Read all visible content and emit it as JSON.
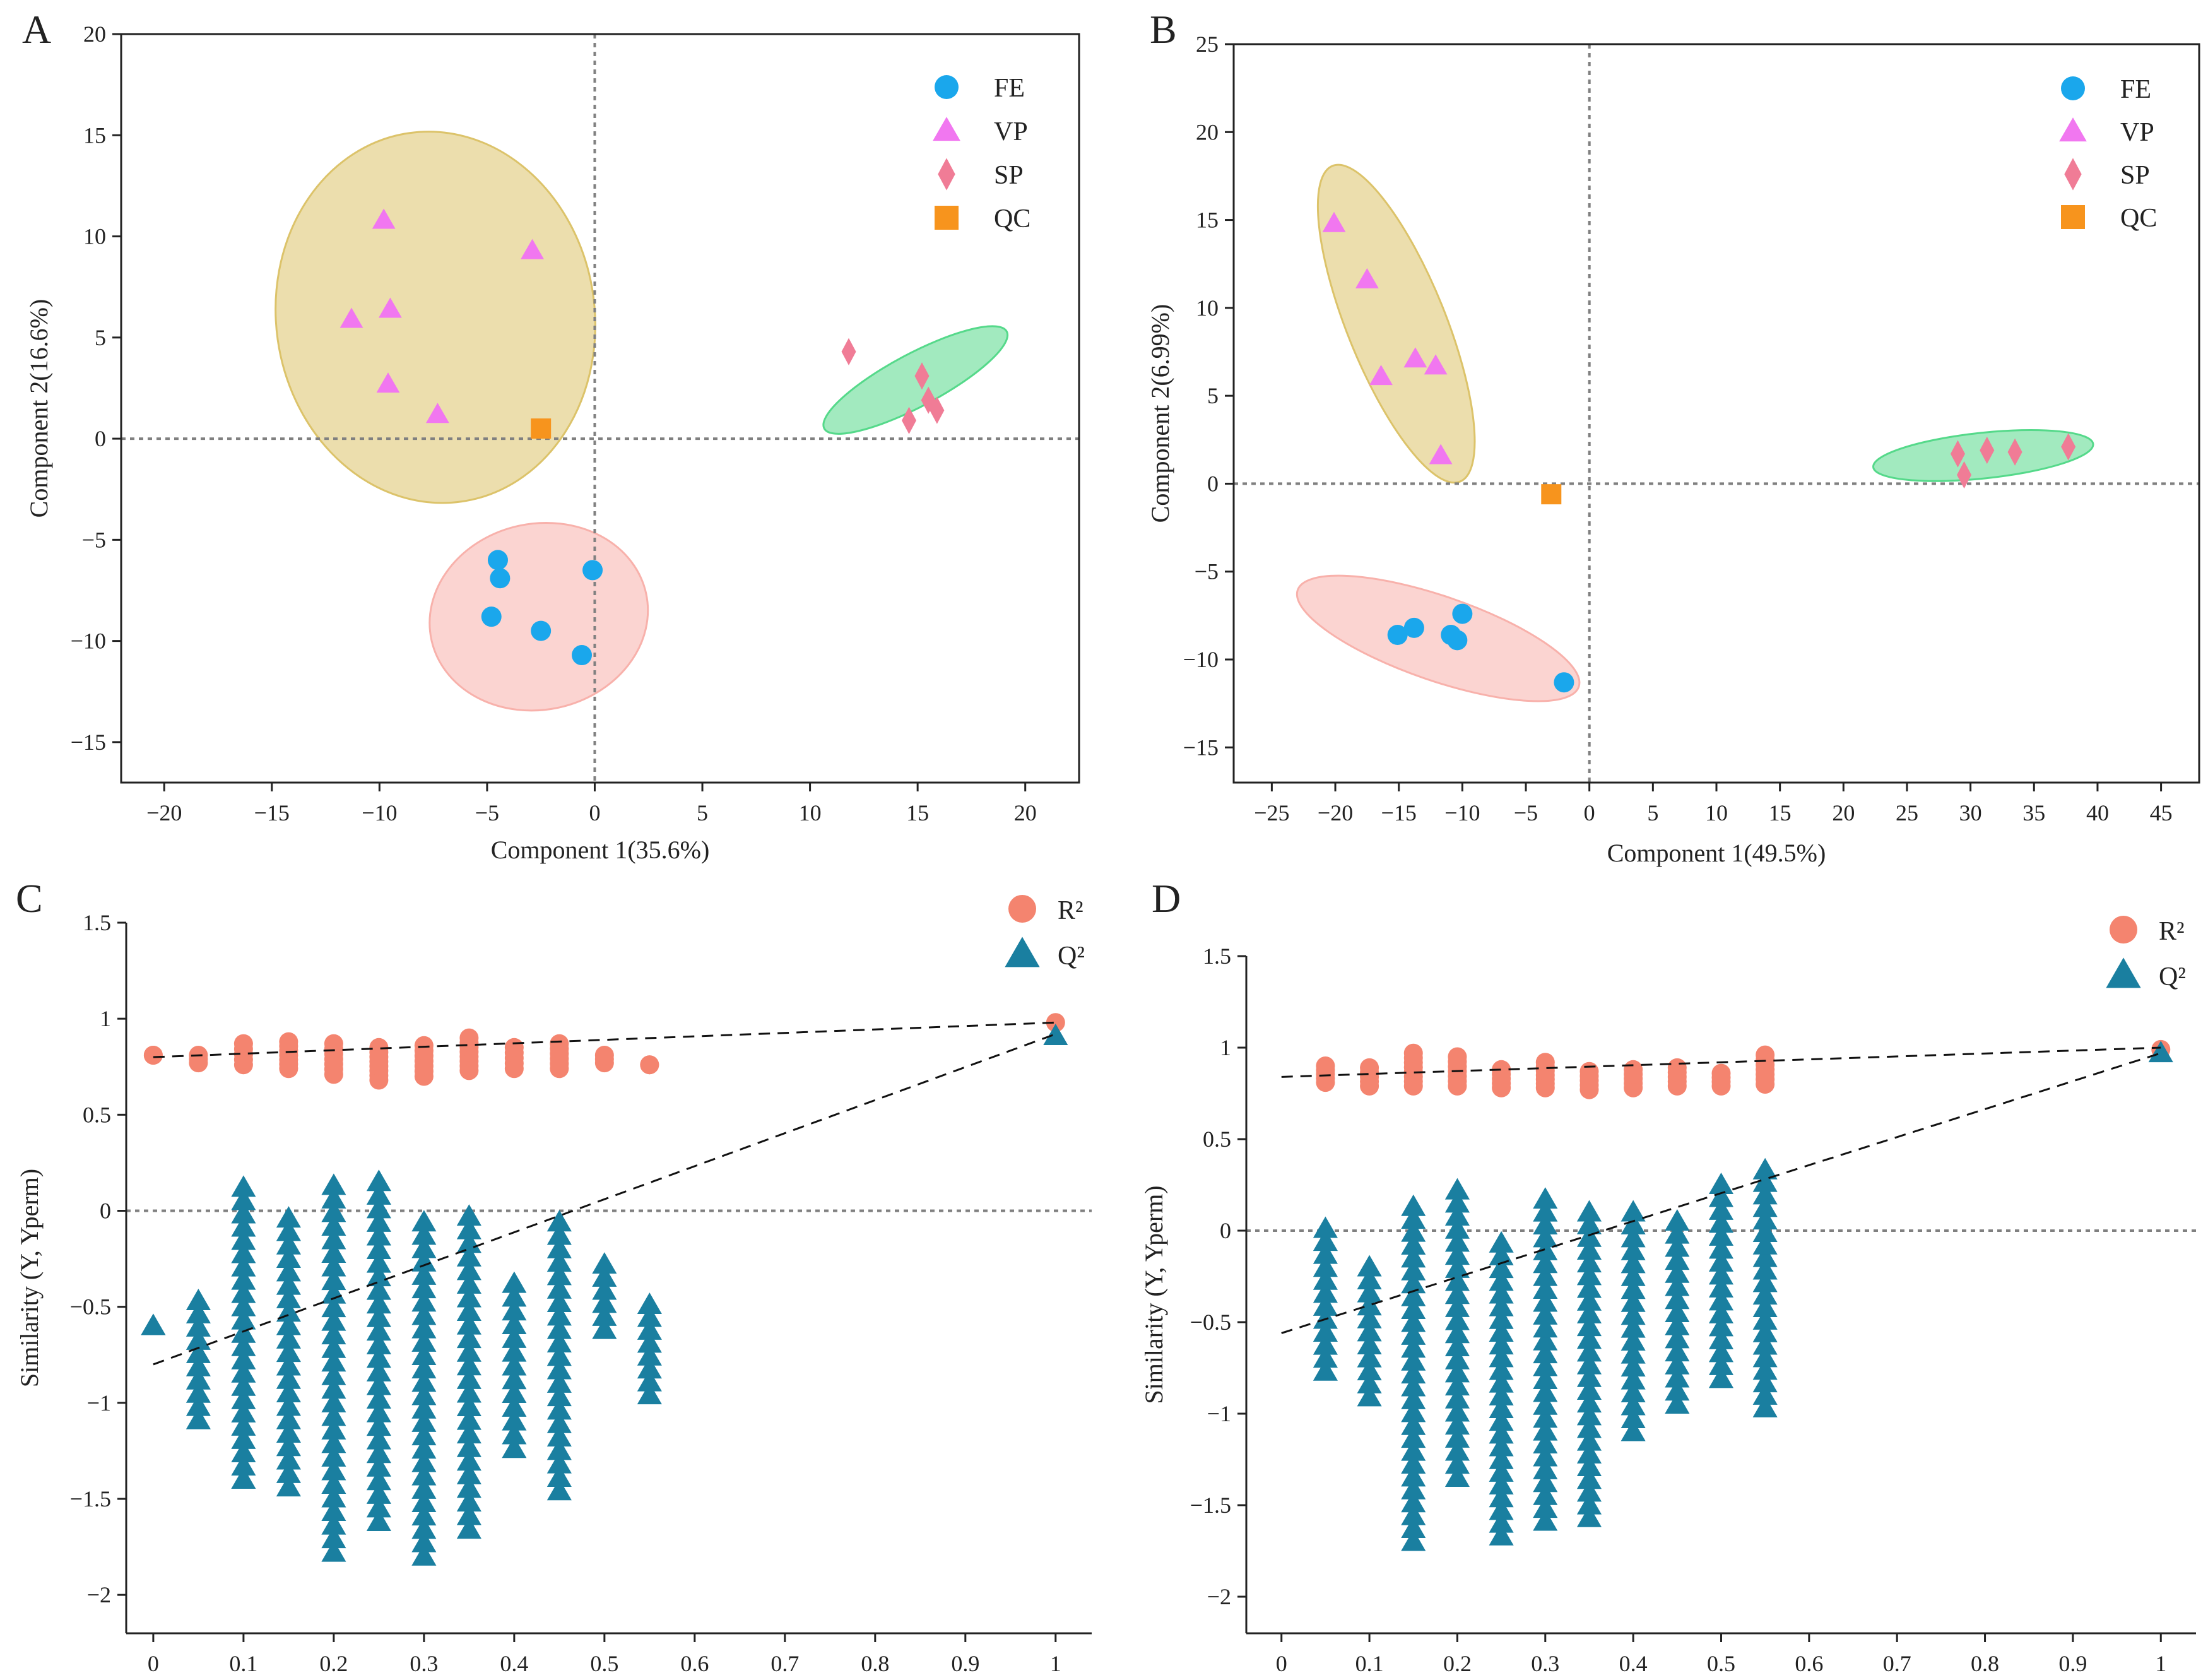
{
  "figure": {
    "panels": [
      "A",
      "B",
      "C",
      "D"
    ]
  },
  "colors": {
    "FE": "#1aa7ec",
    "VP": "#f177f0",
    "SP": "#f07c96",
    "QC": "#f7941d",
    "R2": "#f4846f",
    "Q2": "#1a7fa0",
    "ellipse_VP": "#dcc36a",
    "ellipse_SP": "#55d98a",
    "ellipse_FE": "#f8b1ab",
    "axis": "#222222",
    "refline": "#808080"
  },
  "chart_data": [
    {
      "panel": "A",
      "type": "scatter",
      "xlabel": "Component 1(35.6%)",
      "ylabel": "Component 2(16.6%)",
      "xlim": [
        -22,
        22.5
      ],
      "ylim": [
        -17,
        20
      ],
      "xticks": [
        -20,
        -15,
        -10,
        -5,
        0,
        5,
        10,
        15,
        20
      ],
      "yticks": [
        -15,
        -10,
        -5,
        0,
        5,
        10,
        15,
        20
      ],
      "xtick_labels": [
        "−20",
        "−15",
        "−10",
        "−5",
        "0",
        "5",
        "10",
        "15",
        "20"
      ],
      "ytick_labels": [
        "−15",
        "−10",
        "−5",
        "0",
        "5",
        "10",
        "15",
        "20"
      ],
      "legend": [
        "FE",
        "VP",
        "SP",
        "QC"
      ],
      "series": [
        {
          "name": "FE",
          "marker": "circle",
          "points": [
            [
              -4.5,
              -6.0
            ],
            [
              -4.4,
              -6.9
            ],
            [
              -0.1,
              -6.5
            ],
            [
              -4.8,
              -8.8
            ],
            [
              -2.5,
              -9.5
            ],
            [
              -0.6,
              -10.7
            ]
          ]
        },
        {
          "name": "VP",
          "marker": "triangle",
          "points": [
            [
              -9.8,
              10.8
            ],
            [
              -2.9,
              9.3
            ],
            [
              -9.5,
              6.4
            ],
            [
              -11.3,
              5.9
            ],
            [
              -9.6,
              2.7
            ],
            [
              -7.3,
              1.2
            ]
          ]
        },
        {
          "name": "SP",
          "marker": "diamond",
          "points": [
            [
              11.8,
              4.3
            ],
            [
              15.2,
              3.1
            ],
            [
              15.5,
              1.9
            ],
            [
              15.9,
              1.4
            ],
            [
              14.6,
              0.9
            ]
          ]
        },
        {
          "name": "QC",
          "marker": "square",
          "points": [
            [
              -2.5,
              0.5
            ]
          ]
        }
      ],
      "ellipses": [
        {
          "group": "VP",
          "cx": -7.4,
          "cy": 6.0,
          "rx": 7.4,
          "ry": 9.2,
          "angle": -8
        },
        {
          "group": "SP",
          "cx": 14.9,
          "cy": 2.9,
          "rx": 4.8,
          "ry": 1.3,
          "angle": -28
        },
        {
          "group": "FE",
          "cx": -2.6,
          "cy": -8.8,
          "rx": 5.1,
          "ry": 4.6,
          "angle": -12
        }
      ]
    },
    {
      "panel": "B",
      "type": "scatter",
      "xlabel": "Component 1(49.5%)",
      "ylabel": "Component 2(6.99%)",
      "xlim": [
        -28,
        48
      ],
      "ylim": [
        -17,
        25
      ],
      "xticks": [
        -25,
        -20,
        -15,
        -10,
        -5,
        0,
        5,
        10,
        15,
        20,
        25,
        30,
        35,
        40,
        45
      ],
      "yticks": [
        -15,
        -10,
        -5,
        0,
        5,
        10,
        15,
        20,
        25
      ],
      "xtick_labels": [
        "−25",
        "−20",
        "−15",
        "−10",
        "−5",
        "0",
        "5",
        "10",
        "15",
        "20",
        "25",
        "30",
        "35",
        "40",
        "45"
      ],
      "ytick_labels": [
        "−15",
        "−10",
        "−5",
        "0",
        "5",
        "10",
        "15",
        "20",
        "25"
      ],
      "legend": [
        "FE",
        "VP",
        "SP",
        "QC"
      ],
      "series": [
        {
          "name": "FE",
          "marker": "circle",
          "points": [
            [
              -10.0,
              -7.4
            ],
            [
              -13.8,
              -8.2
            ],
            [
              -15.1,
              -8.6
            ],
            [
              -10.9,
              -8.6
            ],
            [
              -10.4,
              -8.9
            ],
            [
              -2.0,
              -11.3
            ]
          ]
        },
        {
          "name": "VP",
          "marker": "triangle",
          "points": [
            [
              -20.1,
              14.8
            ],
            [
              -17.5,
              11.6
            ],
            [
              -13.7,
              7.1
            ],
            [
              -12.1,
              6.7
            ],
            [
              -16.4,
              6.1
            ],
            [
              -11.7,
              1.6
            ]
          ]
        },
        {
          "name": "SP",
          "marker": "diamond",
          "points": [
            [
              29.0,
              1.7
            ],
            [
              31.3,
              1.9
            ],
            [
              33.5,
              1.8
            ],
            [
              37.7,
              2.1
            ],
            [
              29.5,
              0.5
            ]
          ]
        },
        {
          "name": "QC",
          "marker": "square",
          "points": [
            [
              -3.0,
              -0.6
            ]
          ]
        }
      ],
      "ellipses": [
        {
          "group": "VP",
          "cx": -15.2,
          "cy": 9.1,
          "rx": 13.4,
          "ry": 2.8,
          "angle": 68
        },
        {
          "group": "SP",
          "cx": 31.0,
          "cy": 1.6,
          "rx": 8.7,
          "ry": 1.3,
          "angle": -6
        },
        {
          "group": "FE",
          "cx": -11.9,
          "cy": -8.8,
          "rx": 11.7,
          "ry": 2.4,
          "angle": 19
        }
      ]
    },
    {
      "panel": "C",
      "type": "scatter",
      "xlabel": "",
      "ylabel": "Similarity (Y, Yperm)",
      "xlim": [
        -0.03,
        1.04
      ],
      "ylim": [
        -2.2,
        1.5
      ],
      "xticks": [
        0,
        0.1,
        0.2,
        0.3,
        0.4,
        0.5,
        0.6,
        0.7,
        0.8,
        0.9,
        1
      ],
      "yticks": [
        -2,
        -1.5,
        -1,
        -0.5,
        0,
        0.5,
        1,
        1.5
      ],
      "xtick_labels": [
        "0",
        "0.1",
        "0.2",
        "0.3",
        "0.4",
        "0.5",
        "0.6",
        "0.7",
        "0.8",
        "0.9",
        "1"
      ],
      "ytick_labels": [
        "−2",
        "−1.5",
        "−1",
        "−0.5",
        "0",
        "0.5",
        "1",
        "1.5"
      ],
      "legend": [
        "R²",
        "Q²"
      ],
      "r2": {
        "x": [
          0,
          0.05,
          0.1,
          0.15,
          0.2,
          0.25,
          0.3,
          0.35,
          0.4,
          0.45,
          0.5,
          0.55
        ],
        "min": [
          0.81,
          0.77,
          0.76,
          0.74,
          0.71,
          0.68,
          0.7,
          0.73,
          0.74,
          0.74,
          0.77,
          0.76
        ],
        "max": [
          0.81,
          0.81,
          0.87,
          0.88,
          0.87,
          0.85,
          0.86,
          0.9,
          0.85,
          0.87,
          0.81,
          0.76
        ],
        "final": [
          1,
          0.98
        ]
      },
      "q2": {
        "x": [
          0,
          0.05,
          0.1,
          0.15,
          0.2,
          0.25,
          0.3,
          0.35,
          0.4,
          0.45,
          0.5,
          0.55
        ],
        "min": [
          -0.6,
          -1.09,
          -1.4,
          -1.44,
          -1.78,
          -1.62,
          -1.8,
          -1.66,
          -1.24,
          -1.46,
          -0.62,
          -0.96
        ],
        "max": [
          -0.6,
          -0.47,
          0.12,
          -0.04,
          0.13,
          0.15,
          -0.06,
          -0.03,
          -0.38,
          -0.06,
          -0.28,
          -0.49
        ],
        "final": [
          1,
          0.91
        ]
      },
      "fit_r2": {
        "from": [
          0,
          0.8
        ],
        "to": [
          1,
          0.98
        ]
      },
      "fit_q2": {
        "from": [
          0,
          -0.8
        ],
        "to": [
          1,
          0.92
        ]
      }
    },
    {
      "panel": "D",
      "type": "scatter",
      "xlabel": "",
      "ylabel": "Similarity (Y, Yperm)",
      "xlim": [
        -0.04,
        1.04
      ],
      "ylim": [
        -2.2,
        1.5
      ],
      "xticks": [
        0,
        0.1,
        0.2,
        0.3,
        0.4,
        0.5,
        0.6,
        0.7,
        0.8,
        0.9,
        1
      ],
      "yticks": [
        -2,
        -1.5,
        -1,
        -0.5,
        0,
        0.5,
        1,
        1.5
      ],
      "xtick_labels": [
        "0",
        "0.1",
        "0.2",
        "0.3",
        "0.4",
        "0.5",
        "0.6",
        "0.7",
        "0.8",
        "0.9",
        "1"
      ],
      "ytick_labels": [
        "−2",
        "−1.5",
        "−1",
        "−0.5",
        "0",
        "0.5",
        "1",
        "1.5"
      ],
      "legend": [
        "R²",
        "Q²"
      ],
      "r2": {
        "x": [
          0.05,
          0.1,
          0.15,
          0.2,
          0.25,
          0.3,
          0.35,
          0.4,
          0.45,
          0.5,
          0.55
        ],
        "min": [
          0.81,
          0.79,
          0.79,
          0.79,
          0.78,
          0.78,
          0.77,
          0.78,
          0.79,
          0.79,
          0.8
        ],
        "max": [
          0.9,
          0.89,
          0.97,
          0.95,
          0.88,
          0.92,
          0.87,
          0.88,
          0.89,
          0.86,
          0.96
        ],
        "final": [
          1,
          0.99
        ]
      },
      "q2": {
        "x": [
          0.05,
          0.1,
          0.15,
          0.2,
          0.25,
          0.3,
          0.35,
          0.4,
          0.45,
          0.5,
          0.55
        ],
        "min": [
          -0.77,
          -0.91,
          -1.7,
          -1.35,
          -1.67,
          -1.59,
          -1.57,
          -1.1,
          -0.95,
          -0.81,
          -0.97
        ],
        "max": [
          0.01,
          -0.2,
          0.13,
          0.22,
          -0.07,
          0.17,
          0.1,
          0.1,
          0.05,
          0.25,
          0.33
        ],
        "final": [
          1,
          0.97
        ]
      },
      "fit_r2": {
        "from": [
          0,
          0.84
        ],
        "to": [
          1,
          1.0
        ]
      },
      "fit_q2": {
        "from": [
          0,
          -0.56
        ],
        "to": [
          1,
          0.97
        ]
      }
    }
  ]
}
